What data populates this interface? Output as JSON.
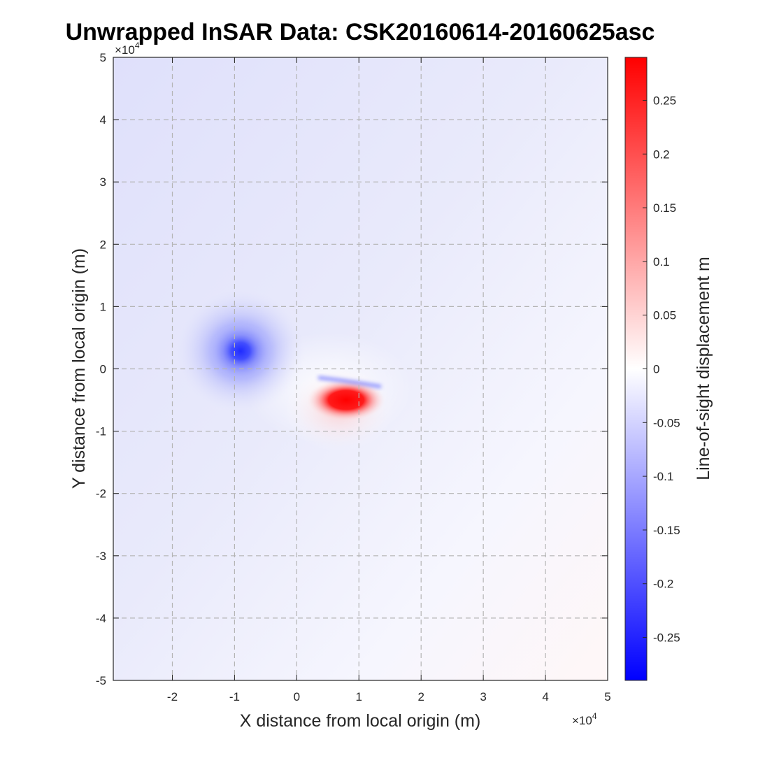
{
  "chart_data": {
    "type": "heatmap",
    "title": "Unwrapped InSAR Data: CSK20160614-20160625asc",
    "xlabel": "X distance from local origin (m)",
    "ylabel": "Y distance from local origin (m)",
    "colorbar_label": "Line-of-sight displacement m",
    "xlim": [
      -29500,
      50000
    ],
    "ylim": [
      -50000,
      50000
    ],
    "x_ticks": [
      -20000,
      -10000,
      0,
      10000,
      20000,
      30000,
      40000,
      50000
    ],
    "y_ticks": [
      -50000,
      -40000,
      -30000,
      -20000,
      -10000,
      0,
      10000,
      20000,
      30000,
      40000,
      50000
    ],
    "x_tick_labels": [
      "-2",
      "-1",
      "0",
      "1",
      "2",
      "3",
      "4",
      "5"
    ],
    "y_tick_labels": [
      "-5",
      "-4",
      "-3",
      "-2",
      "-1",
      "0",
      "1",
      "2",
      "3",
      "4",
      "5"
    ],
    "x_exponent_label": "×10",
    "x_exponent": "4",
    "y_exponent_label": "×10",
    "y_exponent": "4",
    "grid": true,
    "colormap": {
      "low": "#0000ff",
      "mid": "#ffffff",
      "high": "#ff0000"
    },
    "clim": [
      -0.29,
      0.29
    ],
    "colorbar_ticks": [
      -0.25,
      -0.2,
      -0.15,
      -0.1,
      -0.05,
      0,
      0.05,
      0.1,
      0.15,
      0.2,
      0.25
    ],
    "colorbar_tick_labels": [
      "-0.25",
      "-0.2",
      "-0.15",
      "-0.1",
      "-0.05",
      "0",
      "0.05",
      "0.1",
      "0.15",
      "0.2",
      "0.25"
    ],
    "features": [
      {
        "name": "subsidence",
        "x": -9000,
        "y": 3000,
        "value": -0.23
      },
      {
        "name": "uplift",
        "x": 8500,
        "y": -4500,
        "value": 0.28
      }
    ]
  }
}
